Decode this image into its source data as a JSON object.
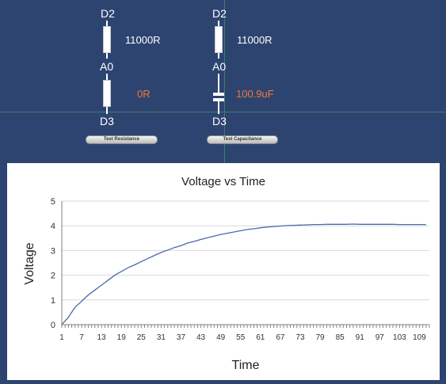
{
  "resistance_circuit": {
    "top_pin": "D2",
    "top_value": "11000R",
    "middle_pin": "A0",
    "measured_value": "0R",
    "bottom_pin": "D3",
    "button_label": "Test Resistance"
  },
  "capacitance_circuit": {
    "top_pin": "D2",
    "top_value": "11000R",
    "middle_pin": "A0",
    "measured_value": "100.9uF",
    "bottom_pin": "D3",
    "button_label": "Test Capacitance"
  },
  "colors": {
    "background": "#2d4470",
    "measured_value": "#f07a3a",
    "series_line": "#4a6aab"
  },
  "chart_data": {
    "type": "line",
    "title": "Voltage vs Time",
    "xlabel": "Time",
    "ylabel": "Voltage",
    "ylim": [
      0,
      5
    ],
    "yticks": [
      "0",
      "1",
      "2",
      "3",
      "4",
      "5"
    ],
    "xticks": [
      "1",
      "7",
      "13",
      "19",
      "25",
      "31",
      "37",
      "43",
      "49",
      "55",
      "61",
      "67",
      "73",
      "79",
      "85",
      "91",
      "97",
      "103",
      "109"
    ],
    "grid": true,
    "x": [
      1,
      2,
      3,
      4,
      5,
      7,
      9,
      11,
      13,
      15,
      17,
      19,
      21,
      23,
      25,
      27,
      29,
      31,
      33,
      35,
      37,
      39,
      41,
      43,
      45,
      47,
      49,
      51,
      53,
      55,
      57,
      59,
      61,
      63,
      65,
      67,
      69,
      71,
      73,
      75,
      77,
      79,
      81,
      83,
      85,
      87,
      89,
      91,
      93,
      95,
      97,
      99,
      101,
      103,
      105,
      107,
      109,
      111
    ],
    "series": [
      {
        "values": [
          0.0,
          0.15,
          0.3,
          0.5,
          0.7,
          0.95,
          1.2,
          1.4,
          1.6,
          1.8,
          2.0,
          2.15,
          2.3,
          2.42,
          2.55,
          2.68,
          2.8,
          2.92,
          3.02,
          3.12,
          3.2,
          3.3,
          3.37,
          3.45,
          3.52,
          3.58,
          3.65,
          3.7,
          3.75,
          3.8,
          3.85,
          3.88,
          3.92,
          3.95,
          3.97,
          3.99,
          4.01,
          4.02,
          4.03,
          4.04,
          4.05,
          4.05,
          4.06,
          4.06,
          4.06,
          4.06,
          4.07,
          4.06,
          4.06,
          4.06,
          4.06,
          4.06,
          4.06,
          4.05,
          4.05,
          4.05,
          4.05,
          4.05
        ]
      }
    ]
  }
}
